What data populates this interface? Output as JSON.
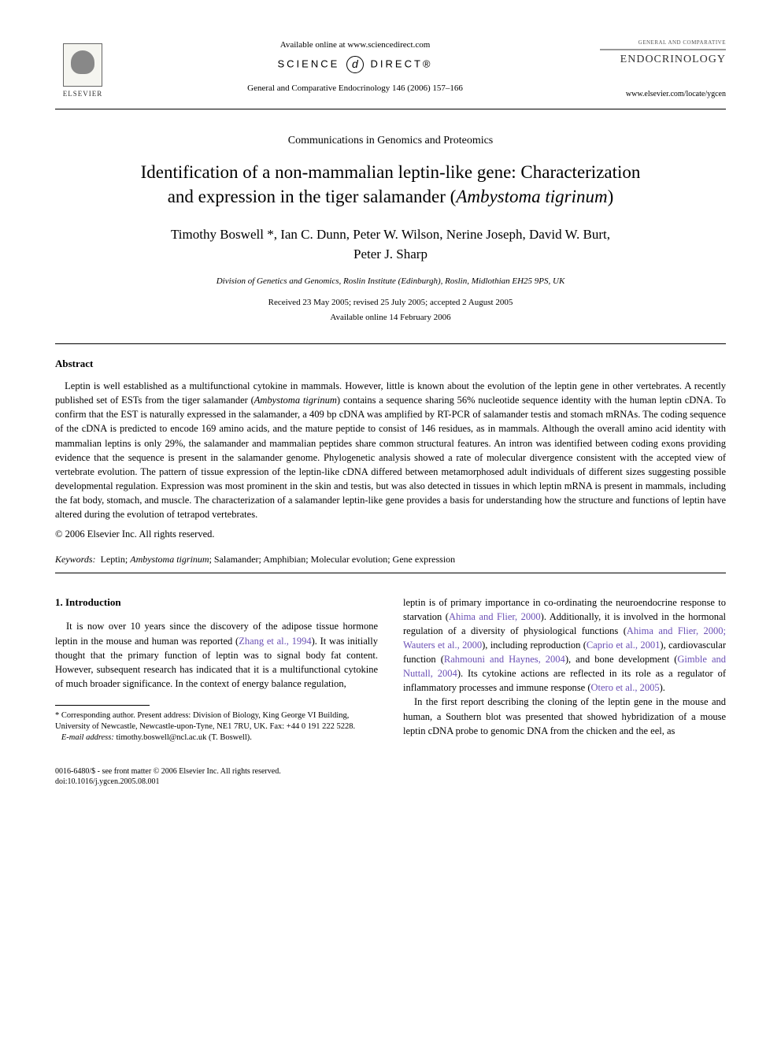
{
  "header": {
    "elsevier": "ELSEVIER",
    "available": "Available online at www.sciencedirect.com",
    "sciencedirect_left": "SCIENCE",
    "sciencedirect_right": "DIRECT®",
    "journal_ref": "General and Comparative Endocrinology 146 (2006) 157–166",
    "journal_small": "GENERAL AND COMPARATIVE",
    "journal_big": "ENDOCRINOLOGY",
    "journal_url": "www.elsevier.com/locate/ygcen"
  },
  "section_label": "Communications in Genomics and Proteomics",
  "title_line1": "Identification of a non-mammalian leptin-like gene: Characterization",
  "title_line2_pre": "and expression in the tiger salamander (",
  "title_species": "Ambystoma tigrinum",
  "title_line2_post": ")",
  "authors_line1": "Timothy Boswell *, Ian C. Dunn, Peter W. Wilson, Nerine Joseph, David W. Burt,",
  "authors_line2": "Peter J. Sharp",
  "affiliation": "Division of Genetics and Genomics, Roslin Institute (Edinburgh), Roslin, Midlothian EH25 9PS, UK",
  "dates_line1": "Received 23 May 2005; revised 25 July 2005; accepted 2 August 2005",
  "dates_line2": "Available online 14 February 2006",
  "abstract_heading": "Abstract",
  "abstract_p1_a": "Leptin is well established as a multifunctional cytokine in mammals. However, little is known about the evolution of the leptin gene in other vertebrates. A recently published set of ESTs from the tiger salamander (",
  "abstract_species": "Ambystoma tigrinum",
  "abstract_p1_b": ") contains a sequence sharing 56% nucleotide sequence identity with the human leptin cDNA. To confirm that the EST is naturally expressed in the salamander, a 409 bp cDNA was amplified by RT-PCR of salamander testis and stomach mRNAs. The coding sequence of the cDNA is predicted to encode 169 amino acids, and the mature peptide to consist of 146 residues, as in mammals. Although the overall amino acid identity with mammalian leptins is only 29%, the salamander and mammalian peptides share common structural features. An intron was identified between coding exons providing evidence that the sequence is present in the salamander genome. Phylogenetic analysis showed a rate of molecular divergence consistent with the accepted view of vertebrate evolution. The pattern of tissue expression of the leptin-like cDNA differed between metamorphosed adult individuals of different sizes suggesting possible developmental regulation. Expression was most prominent in the skin and testis, but was also detected in tissues in which leptin mRNA is present in mammals, including the fat body, stomach, and muscle. The characterization of a salamander leptin-like gene provides a basis for understanding how the structure and functions of leptin have altered during the evolution of tetrapod vertebrates.",
  "copyright": "© 2006 Elsevier Inc. All rights reserved.",
  "keywords_label": "Keywords:",
  "keywords_text_a": "Leptin; ",
  "keywords_species": "Ambystoma tigrinum",
  "keywords_text_b": "; Salamander; Amphibian; Molecular evolution; Gene expression",
  "intro_heading": "1. Introduction",
  "intro_col1_a": "It is now over 10 years since the discovery of the adipose tissue hormone leptin in the mouse and human was reported (",
  "cite_zhang": "Zhang et al., 1994",
  "intro_col1_b": "). It was initially thought that the primary function of leptin was to signal body fat content. However, subsequent research has indicated that it is a multifunctional cytokine of much broader significance. In the context of energy balance regulation,",
  "intro_col2_a": "leptin is of primary importance in co-ordinating the neuroendocrine response to starvation (",
  "cite_ahima1": "Ahima and Flier, 2000",
  "intro_col2_b": "). Additionally, it is involved in the hormonal regulation of a diversity of physiological functions (",
  "cite_ahima2": "Ahima and Flier, 2000; Wauters et al., 2000",
  "intro_col2_c": "), including reproduction (",
  "cite_caprio": "Caprio et al., 2001",
  "intro_col2_d": "), cardiovascular function (",
  "cite_rahmouni": "Rahmouni and Haynes, 2004",
  "intro_col2_e": "), and bone development (",
  "cite_gimble": "Gimble and Nuttall, 2004",
  "intro_col2_f": "). Its cytokine actions are reflected in its role as a regulator of inflammatory processes and immune response (",
  "cite_otero": "Otero et al., 2005",
  "intro_col2_g": ").",
  "intro_col2_p2": "In the first report describing the cloning of the leptin gene in the mouse and human, a Southern blot was presented that showed hybridization of a mouse leptin cDNA probe to genomic DNA from the chicken and the eel, as",
  "footnote_corr": "* Corresponding author. Present address: Division of Biology, King George VI Building, University of Newcastle, Newcastle-upon-Tyne, NE1 7RU, UK. Fax: +44 0 191 222 5228.",
  "footnote_email_label": "E-mail address:",
  "footnote_email": "timothy.boswell@ncl.ac.uk",
  "footnote_email_who": " (T. Boswell).",
  "footer_line1": "0016-6480/$ - see front matter © 2006 Elsevier Inc. All rights reserved.",
  "footer_line2": "doi:10.1016/j.ygcen.2005.08.001",
  "colors": {
    "citation": "#6a4fb5",
    "text": "#000000",
    "background": "#ffffff"
  }
}
